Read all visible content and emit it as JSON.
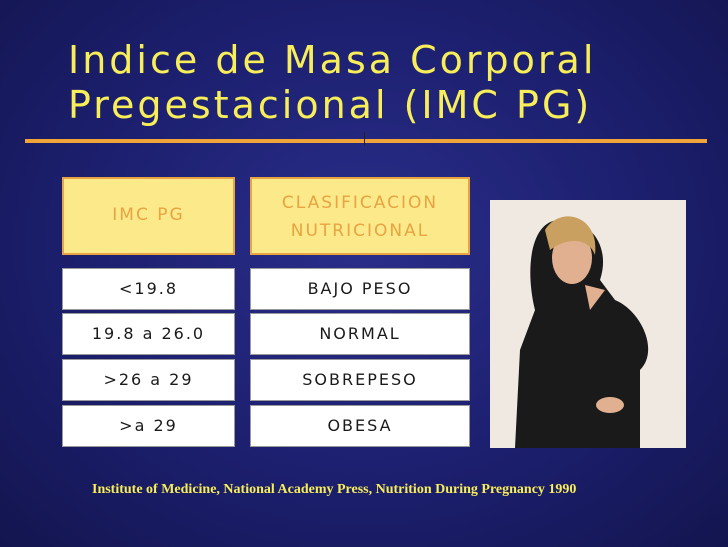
{
  "header": {
    "title_lines": [
      "Indice de Masa Corporal",
      "Pregestacional (IMC PG)"
    ]
  },
  "table": {
    "headers": [
      "IMC PG",
      [
        "CLASIFICACION",
        "NUTRICIONAL"
      ]
    ],
    "rows": [
      [
        "<19.8",
        "BAJO PESO"
      ],
      [
        "19.8 a 26.0",
        "NORMAL"
      ],
      [
        ">26 a 29",
        "SOBREPESO"
      ],
      [
        ">a 29",
        "OBESA"
      ]
    ]
  },
  "footer": {
    "citation": "Institute of Medicine, National Academy Press, Nutrition During Pregnancy 1990"
  }
}
